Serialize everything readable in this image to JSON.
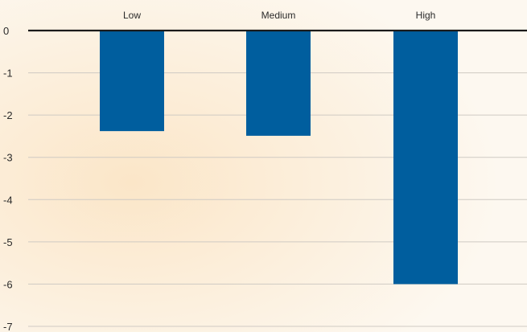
{
  "chart_data": {
    "type": "bar",
    "categories": [
      "Low",
      "Medium",
      "High"
    ],
    "values": [
      -2.38,
      -2.49,
      -6.0
    ],
    "ylim": [
      -7,
      0
    ],
    "yticks": [
      "0",
      "-1",
      "-2",
      "-3",
      "-4",
      "-5",
      "-6",
      "-7"
    ],
    "grid": true,
    "category_axis_position": "top",
    "colors": {
      "bar": "#005E9E",
      "background": "#FDF7EE",
      "background_glow": "#FBE9CF",
      "zero_line": "#1A1A1A",
      "grid": "#CFCAC3"
    }
  }
}
